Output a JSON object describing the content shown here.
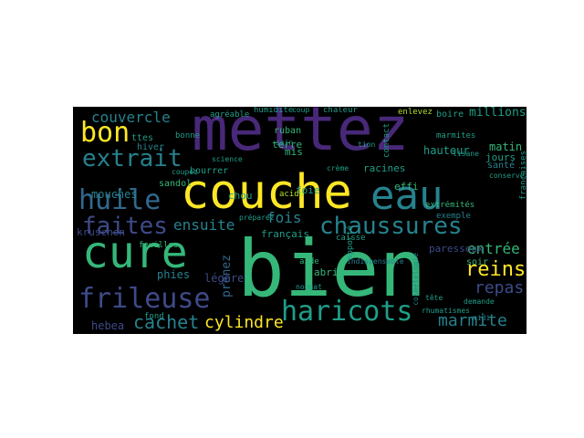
{
  "palette": {
    "purple": "#482878",
    "indigo": "#3e4a89",
    "blue": "#31688e",
    "teal": "#26828e",
    "green": "#1f9e89",
    "mint": "#35b779",
    "lime": "#6ece58",
    "yellow": "#b5de2b",
    "bright": "#fde725",
    "background": "#000000"
  },
  "words": [
    "mettez",
    "bien",
    "couche",
    "eau",
    "cure",
    "huile",
    "bon",
    "extrait",
    "faites",
    "chaussures",
    "frileuse",
    "haricots",
    "couvercle",
    "reins",
    "repas",
    "marmite",
    "cachet",
    "cylindre",
    "ensuite",
    "fois",
    "entrée",
    "millions",
    "matin",
    "jours",
    "racines",
    "santé",
    "mouches",
    "hebea",
    "chou",
    "kruschen",
    "acide",
    "crème",
    "boire",
    "chaleur",
    "enlevez",
    "ruban",
    "terre",
    "mis",
    "hauteur",
    "foie",
    "soir",
    "français",
    "françaises",
    "extrémités",
    "exemple",
    "prenez",
    "apporté",
    "caisse",
    "légère",
    "phies",
    "paresseux",
    "cosmétologie",
    "abri",
    "aide",
    "indispensable",
    "agréable",
    "humidité",
    "coup",
    "feuilles",
    "fond",
    "demande",
    "bourrer",
    "effi",
    "ttes",
    "hiver",
    "bonne",
    "tion",
    "contact",
    "sandol",
    "tisane",
    "conserve",
    "midi",
    "tête",
    "soin",
    "coupez",
    "préparez",
    "nougat",
    "rhumatismes",
    "marmites",
    "science"
  ]
}
